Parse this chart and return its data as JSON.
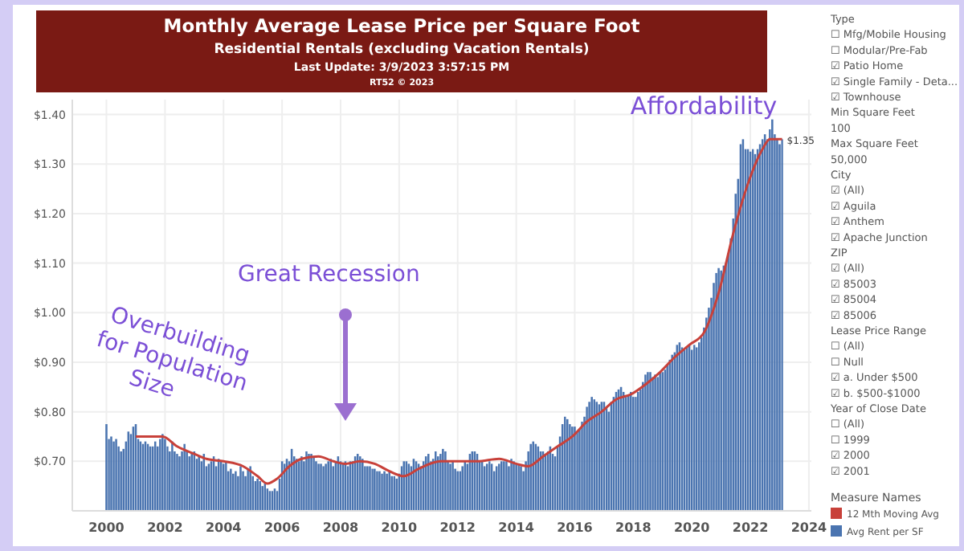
{
  "chart_data": [
    {
      "type": "bar",
      "title": "Monthly Average Lease Price per Square Foot",
      "subtitle": "Residential Rentals (excluding Vacation Rentals)",
      "annotations": [
        "Last Update: 3/9/2023 3:57:15 PM",
        "RT52 © 2023",
        "Overbuilding for Population Size",
        "Great Recession",
        "Affordability",
        {
          "text": "$1.35",
          "x": "2023-02",
          "y": 1.35
        }
      ],
      "xlim": [
        "1998-11",
        "2024-02"
      ],
      "xticks": [
        "2000",
        "2002",
        "2004",
        "2006",
        "2008",
        "2010",
        "2012",
        "2014",
        "2016",
        "2018",
        "2020",
        "2022",
        "2024"
      ],
      "ylim": [
        0.6,
        1.43
      ],
      "yticks": [
        {
          "value": 0.7,
          "label": "$0.70"
        },
        {
          "value": 0.8,
          "label": "$0.80"
        },
        {
          "value": 0.9,
          "label": "$0.90"
        },
        {
          "value": 1.0,
          "label": "$1.00"
        },
        {
          "value": 1.1,
          "label": "$1.10"
        },
        {
          "value": 1.2,
          "label": "$1.20"
        },
        {
          "value": 1.3,
          "label": "$1.30"
        },
        {
          "value": 1.4,
          "label": "$1.40"
        }
      ],
      "grid": true,
      "legend": "right",
      "legend_title": "Measure Names",
      "series": [
        {
          "name": "Avg Rent per SF",
          "type": "bar",
          "color": "#4a74b0",
          "x": [
            "2000-01",
            "2000-02",
            "2000-03",
            "2000-04",
            "2000-05",
            "2000-06",
            "2000-07",
            "2000-08",
            "2000-09",
            "2000-10",
            "2000-11",
            "2000-12",
            "2001-01",
            "2001-02",
            "2001-03",
            "2001-04",
            "2001-05",
            "2001-06",
            "2001-07",
            "2001-08",
            "2001-09",
            "2001-10",
            "2001-11",
            "2001-12",
            "2002-01",
            "2002-02",
            "2002-03",
            "2002-04",
            "2002-05",
            "2002-06",
            "2002-07",
            "2002-08",
            "2002-09",
            "2002-10",
            "2002-11",
            "2002-12",
            "2003-01",
            "2003-02",
            "2003-03",
            "2003-04",
            "2003-05",
            "2003-06",
            "2003-07",
            "2003-08",
            "2003-09",
            "2003-10",
            "2003-11",
            "2003-12",
            "2004-01",
            "2004-02",
            "2004-03",
            "2004-04",
            "2004-05",
            "2004-06",
            "2004-07",
            "2004-08",
            "2004-09",
            "2004-10",
            "2004-11",
            "2004-12",
            "2005-01",
            "2005-02",
            "2005-03",
            "2005-04",
            "2005-05",
            "2005-06",
            "2005-07",
            "2005-08",
            "2005-09",
            "2005-10",
            "2005-11",
            "2005-12",
            "2006-01",
            "2006-02",
            "2006-03",
            "2006-04",
            "2006-05",
            "2006-06",
            "2006-07",
            "2006-08",
            "2006-09",
            "2006-10",
            "2006-11",
            "2006-12",
            "2007-01",
            "2007-02",
            "2007-03",
            "2007-04",
            "2007-05",
            "2007-06",
            "2007-07",
            "2007-08",
            "2007-09",
            "2007-10",
            "2007-11",
            "2007-12",
            "2008-01",
            "2008-02",
            "2008-03",
            "2008-04",
            "2008-05",
            "2008-06",
            "2008-07",
            "2008-08",
            "2008-09",
            "2008-10",
            "2008-11",
            "2008-12",
            "2009-01",
            "2009-02",
            "2009-03",
            "2009-04",
            "2009-05",
            "2009-06",
            "2009-07",
            "2009-08",
            "2009-09",
            "2009-10",
            "2009-11",
            "2009-12",
            "2010-01",
            "2010-02",
            "2010-03",
            "2010-04",
            "2010-05",
            "2010-06",
            "2010-07",
            "2010-08",
            "2010-09",
            "2010-10",
            "2010-11",
            "2010-12",
            "2011-01",
            "2011-02",
            "2011-03",
            "2011-04",
            "2011-05",
            "2011-06",
            "2011-07",
            "2011-08",
            "2011-09",
            "2011-10",
            "2011-11",
            "2011-12",
            "2012-01",
            "2012-02",
            "2012-03",
            "2012-04",
            "2012-05",
            "2012-06",
            "2012-07",
            "2012-08",
            "2012-09",
            "2012-10",
            "2012-11",
            "2012-12",
            "2013-01",
            "2013-02",
            "2013-03",
            "2013-04",
            "2013-05",
            "2013-06",
            "2013-07",
            "2013-08",
            "2013-09",
            "2013-10",
            "2013-11",
            "2013-12",
            "2014-01",
            "2014-02",
            "2014-03",
            "2014-04",
            "2014-05",
            "2014-06",
            "2014-07",
            "2014-08",
            "2014-09",
            "2014-10",
            "2014-11",
            "2014-12",
            "2015-01",
            "2015-02",
            "2015-03",
            "2015-04",
            "2015-05",
            "2015-06",
            "2015-07",
            "2015-08",
            "2015-09",
            "2015-10",
            "2015-11",
            "2015-12",
            "2016-01",
            "2016-02",
            "2016-03",
            "2016-04",
            "2016-05",
            "2016-06",
            "2016-07",
            "2016-08",
            "2016-09",
            "2016-10",
            "2016-11",
            "2016-12",
            "2017-01",
            "2017-02",
            "2017-03",
            "2017-04",
            "2017-05",
            "2017-06",
            "2017-07",
            "2017-08",
            "2017-09",
            "2017-10",
            "2017-11",
            "2017-12",
            "2018-01",
            "2018-02",
            "2018-03",
            "2018-04",
            "2018-05",
            "2018-06",
            "2018-07",
            "2018-08",
            "2018-09",
            "2018-10",
            "2018-11",
            "2018-12",
            "2019-01",
            "2019-02",
            "2019-03",
            "2019-04",
            "2019-05",
            "2019-06",
            "2019-07",
            "2019-08",
            "2019-09",
            "2019-10",
            "2019-11",
            "2019-12",
            "2020-01",
            "2020-02",
            "2020-03",
            "2020-04",
            "2020-05",
            "2020-06",
            "2020-07",
            "2020-08",
            "2020-09",
            "2020-10",
            "2020-11",
            "2020-12",
            "2021-01",
            "2021-02",
            "2021-03",
            "2021-04",
            "2021-05",
            "2021-06",
            "2021-07",
            "2021-08",
            "2021-09",
            "2021-10",
            "2021-11",
            "2021-12",
            "2022-01",
            "2022-02",
            "2022-03",
            "2022-04",
            "2022-05",
            "2022-06",
            "2022-07",
            "2022-08",
            "2022-09",
            "2022-10",
            "2022-11",
            "2022-12",
            "2023-01",
            "2023-02"
          ],
          "values": [
            0.775,
            0.745,
            0.75,
            0.74,
            0.745,
            0.73,
            0.72,
            0.725,
            0.74,
            0.76,
            0.755,
            0.77,
            0.775,
            0.745,
            0.74,
            0.735,
            0.74,
            0.735,
            0.73,
            0.73,
            0.74,
            0.73,
            0.745,
            0.755,
            0.745,
            0.73,
            0.72,
            0.74,
            0.72,
            0.715,
            0.71,
            0.72,
            0.735,
            0.72,
            0.71,
            0.715,
            0.72,
            0.705,
            0.71,
            0.7,
            0.715,
            0.69,
            0.695,
            0.7,
            0.71,
            0.69,
            0.705,
            0.7,
            0.695,
            0.7,
            0.68,
            0.685,
            0.675,
            0.68,
            0.67,
            0.69,
            0.68,
            0.67,
            0.685,
            0.69,
            0.67,
            0.66,
            0.665,
            0.66,
            0.65,
            0.655,
            0.645,
            0.64,
            0.64,
            0.645,
            0.64,
            0.665,
            0.7,
            0.695,
            0.705,
            0.7,
            0.725,
            0.71,
            0.705,
            0.7,
            0.71,
            0.7,
            0.72,
            0.715,
            0.715,
            0.71,
            0.7,
            0.695,
            0.695,
            0.69,
            0.695,
            0.7,
            0.705,
            0.69,
            0.7,
            0.71,
            0.7,
            0.695,
            0.7,
            0.69,
            0.7,
            0.7,
            0.71,
            0.715,
            0.71,
            0.705,
            0.69,
            0.69,
            0.69,
            0.685,
            0.685,
            0.68,
            0.68,
            0.675,
            0.68,
            0.675,
            0.68,
            0.67,
            0.67,
            0.665,
            0.675,
            0.69,
            0.7,
            0.7,
            0.695,
            0.69,
            0.705,
            0.7,
            0.695,
            0.69,
            0.7,
            0.71,
            0.715,
            0.7,
            0.705,
            0.72,
            0.71,
            0.715,
            0.725,
            0.72,
            0.7,
            0.695,
            0.7,
            0.685,
            0.68,
            0.68,
            0.69,
            0.7,
            0.695,
            0.715,
            0.72,
            0.72,
            0.715,
            0.7,
            0.7,
            0.69,
            0.695,
            0.7,
            0.695,
            0.68,
            0.69,
            0.695,
            0.7,
            0.7,
            0.7,
            0.69,
            0.705,
            0.7,
            0.695,
            0.695,
            0.69,
            0.68,
            0.7,
            0.72,
            0.735,
            0.74,
            0.735,
            0.73,
            0.72,
            0.72,
            0.715,
            0.72,
            0.73,
            0.715,
            0.71,
            0.73,
            0.75,
            0.775,
            0.79,
            0.785,
            0.775,
            0.77,
            0.77,
            0.76,
            0.765,
            0.78,
            0.79,
            0.81,
            0.82,
            0.83,
            0.825,
            0.82,
            0.815,
            0.82,
            0.82,
            0.81,
            0.8,
            0.82,
            0.83,
            0.84,
            0.845,
            0.85,
            0.84,
            0.83,
            0.835,
            0.84,
            0.83,
            0.83,
            0.84,
            0.845,
            0.86,
            0.875,
            0.88,
            0.88,
            0.87,
            0.875,
            0.87,
            0.88,
            0.88,
            0.885,
            0.895,
            0.905,
            0.915,
            0.92,
            0.935,
            0.94,
            0.93,
            0.925,
            0.93,
            0.935,
            0.925,
            0.935,
            0.93,
            0.94,
            0.95,
            0.97,
            0.99,
            1.01,
            1.03,
            1.06,
            1.08,
            1.09,
            1.085,
            1.095,
            1.1,
            1.12,
            1.15,
            1.19,
            1.24,
            1.27,
            1.34,
            1.35,
            1.33,
            1.33,
            1.325,
            1.33,
            1.32,
            1.33,
            1.34,
            1.35,
            1.36,
            1.35,
            1.37,
            1.39,
            1.36,
            1.35,
            1.34,
            1.35
          ]
        },
        {
          "name": "12 Mth Moving Avg",
          "type": "line",
          "color": "#c8413a",
          "x": [
            "2001-01",
            "2001-12",
            "2002-06",
            "2003-01",
            "2003-06",
            "2004-01",
            "2004-09",
            "2005-03",
            "2005-07",
            "2005-11",
            "2006-04",
            "2006-09",
            "2007-04",
            "2007-10",
            "2008-03",
            "2008-09",
            "2009-03",
            "2009-09",
            "2010-03",
            "2010-09",
            "2011-06",
            "2012-01",
            "2012-09",
            "2013-06",
            "2014-01",
            "2014-06",
            "2014-12",
            "2015-06",
            "2015-12",
            "2016-06",
            "2016-12",
            "2017-06",
            "2017-12",
            "2018-06",
            "2018-12",
            "2019-06",
            "2019-12",
            "2020-06",
            "2020-12",
            "2021-06",
            "2021-12",
            "2022-06",
            "2022-09",
            "2023-02"
          ],
          "values": [
            0.75,
            0.75,
            0.73,
            0.715,
            0.705,
            0.7,
            0.69,
            0.67,
            0.655,
            0.665,
            0.69,
            0.705,
            0.71,
            0.7,
            0.695,
            0.7,
            0.695,
            0.68,
            0.67,
            0.685,
            0.7,
            0.7,
            0.7,
            0.705,
            0.695,
            0.69,
            0.71,
            0.73,
            0.75,
            0.78,
            0.8,
            0.825,
            0.835,
            0.855,
            0.88,
            0.91,
            0.935,
            0.96,
            1.04,
            1.16,
            1.26,
            1.33,
            1.35,
            1.35
          ]
        }
      ]
    },
    {
      "type": "other",
      "annotations": [
        "Type",
        "☐ Mfg/Mobile Housing",
        "☐ Modular/Pre-Fab",
        "☑ Patio Home",
        "☑ Single Family - Deta...",
        "☑ Townhouse",
        "Min Square Feet",
        "100",
        "Max Square Feet",
        "50,000",
        "City",
        "☑ (All)",
        "☑ Aguila",
        "☑ Anthem",
        "☑ Apache Junction",
        "ZIP",
        "☑ (All)",
        "☑ 85003",
        "☑ 85004",
        "☑ 85006",
        "Lease Price Range",
        "☐ (All)",
        "☐ Null",
        "☑ a. Under $500",
        "☑ b. $500-$1000",
        "Year of Close Date",
        "☐ (All)",
        "☐ 1999",
        "☑ 2000",
        "☑ 2001"
      ]
    }
  ]
}
